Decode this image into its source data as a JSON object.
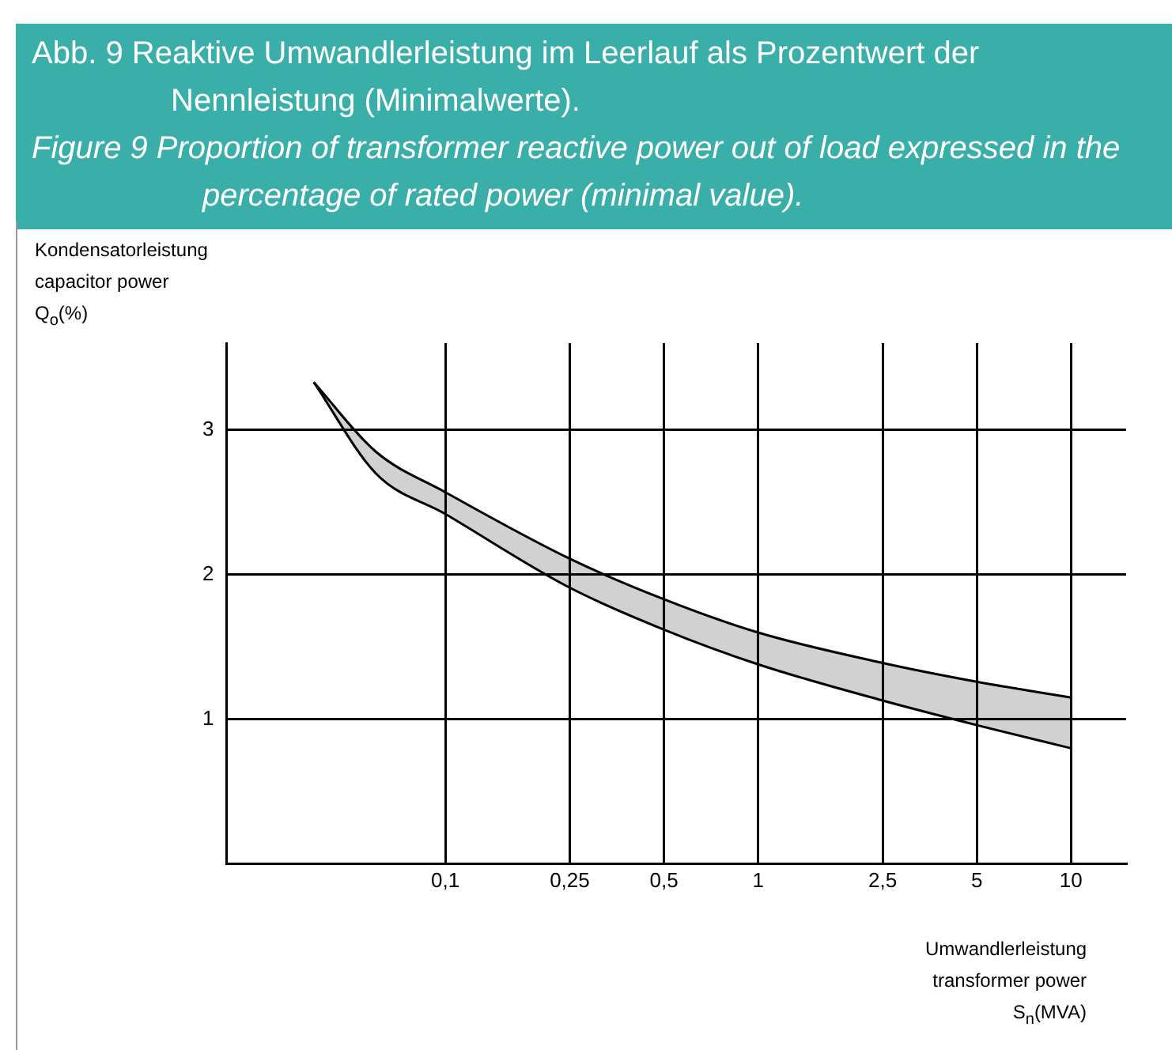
{
  "chart_data": {
    "type": "line",
    "title": "Abb. 9 Reaktive Umwandlerleistung im Leerlauf als Prozentwert der Nennleistung (Minimalwerte).",
    "subtitle": "Figure 9 Proportion of transformer reactive power out of load expressed in the percentage of rated power (minimal value).",
    "xlabel": "Umwandlerleistung\ntransformer power\nS$_{n}$(MVA)",
    "ylabel": "Kondensatorleistung\ncapacitor power\nQ$_{o}$(%)",
    "x": [
      0.038,
      0.06,
      0.1,
      0.25,
      0.5,
      1,
      2.5,
      5,
      10
    ],
    "series": [
      {
        "color": "#000000",
        "values": [
          3.33,
          2.7,
          2.42,
          1.91,
          1.62,
          1.38,
          1.13,
          0.96,
          0.8
        ]
      },
      {
        "color": "#000000",
        "values": [
          3.33,
          2.85,
          2.57,
          2.11,
          1.83,
          1.6,
          1.39,
          1.26,
          1.15
        ],
        "lower": [
          3.33,
          2.7,
          2.42,
          1.91,
          1.62,
          1.38,
          1.13,
          0.96,
          0.8
        ],
        "upper": [
          3.33,
          2.85,
          2.57,
          2.11,
          1.83,
          1.6,
          1.39,
          1.26,
          1.15
        ]
      }
    ],
    "log": "x",
    "xlim": [
      0.02,
      15
    ],
    "xticks": [
      {
        "value": 0.1,
        "label": "0,1"
      },
      {
        "value": 0.25,
        "label": "0,25"
      },
      {
        "value": 0.5,
        "label": "0,5"
      },
      1,
      {
        "value": 2.5,
        "label": "2,5"
      },
      5,
      10
    ],
    "ylim": [
      0,
      3.6
    ],
    "yticks": [
      1,
      2,
      3
    ],
    "grid": true,
    "legend": false,
    "marker": "none",
    "line_style": "solid"
  }
}
